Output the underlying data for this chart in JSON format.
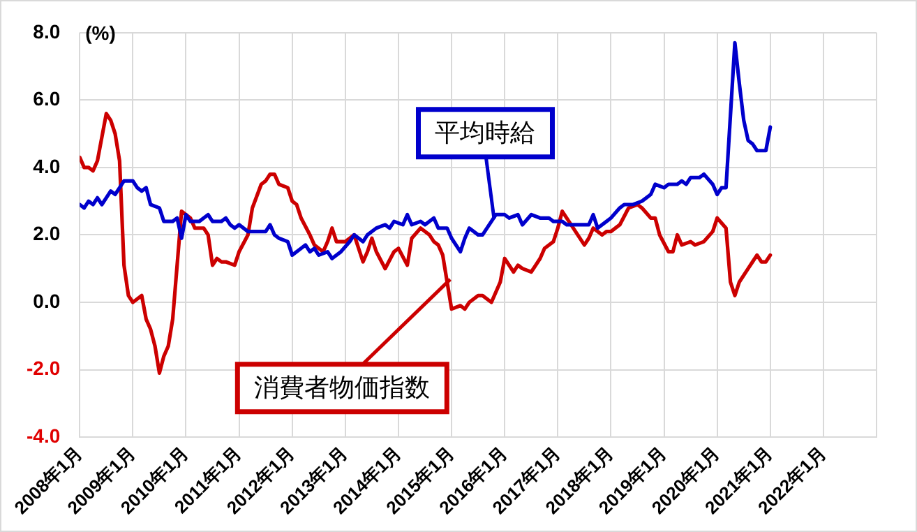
{
  "chart_data": {
    "type": "line",
    "ylabel": "(%)",
    "grid": true,
    "legend": false,
    "marker": "none",
    "line_style": "solid",
    "xlim": [
      "2008-01",
      "2023-01"
    ],
    "xticks": [
      {
        "value": "2008-01",
        "label": "2008年1月"
      },
      {
        "value": "2009-01",
        "label": "2009年1月"
      },
      {
        "value": "2010-01",
        "label": "2010年1月"
      },
      {
        "value": "2011-01",
        "label": "2011年1月"
      },
      {
        "value": "2012-01",
        "label": "2012年1月"
      },
      {
        "value": "2013-01",
        "label": "2013年1月"
      },
      {
        "value": "2014-01",
        "label": "2014年1月"
      },
      {
        "value": "2015-01",
        "label": "2015年1月"
      },
      {
        "value": "2016-01",
        "label": "2016年1月"
      },
      {
        "value": "2017-01",
        "label": "2017年1月"
      },
      {
        "value": "2018-01",
        "label": "2018年1月"
      },
      {
        "value": "2019-01",
        "label": "2019年1月"
      },
      {
        "value": "2020-01",
        "label": "2020年1月"
      },
      {
        "value": "2021-01",
        "label": "2021年1月"
      },
      {
        "value": "2022-01",
        "label": "2022年1月"
      },
      {
        "value": "2023-01",
        "label": null
      }
    ],
    "ylim": [
      -4,
      8
    ],
    "yticks": [
      {
        "value": -4,
        "label": "-4.0"
      },
      {
        "value": -2,
        "label": "-2.0"
      },
      {
        "value": 0,
        "label": "0.0"
      },
      {
        "value": 2,
        "label": "2.0"
      },
      {
        "value": 4,
        "label": "4.0"
      },
      {
        "value": 6,
        "label": "6.0"
      },
      {
        "value": 8,
        "label": "8.0"
      }
    ],
    "series": [
      {
        "name": "平均時給",
        "color": "#0000cc",
        "x": [
          "2008-01",
          "2008-02",
          "2008-03",
          "2008-04",
          "2008-05",
          "2008-06",
          "2008-08",
          "2008-09",
          "2008-10",
          "2008-11",
          "2009-01",
          "2009-02",
          "2009-03",
          "2009-04",
          "2009-05",
          "2009-07",
          "2009-08",
          "2009-10",
          "2009-11",
          "2009-12",
          "2010-01",
          "2010-02",
          "2010-04",
          "2010-06",
          "2010-07",
          "2010-09",
          "2010-10",
          "2010-11",
          "2010-12",
          "2011-01",
          "2011-03",
          "2011-05",
          "2011-07",
          "2011-08",
          "2011-09",
          "2011-10",
          "2011-12",
          "2012-01",
          "2012-03",
          "2012-04",
          "2012-05",
          "2012-06",
          "2012-07",
          "2012-09",
          "2012-10",
          "2012-12",
          "2013-02",
          "2013-03",
          "2013-05",
          "2013-06",
          "2013-08",
          "2013-10",
          "2013-11",
          "2013-12",
          "2014-02",
          "2014-03",
          "2014-04",
          "2014-06",
          "2014-07",
          "2014-09",
          "2014-10",
          "2014-12",
          "2015-01",
          "2015-03",
          "2015-04",
          "2015-05",
          "2015-07",
          "2015-08",
          "2015-10",
          "2015-11",
          "2016-01",
          "2016-02",
          "2016-04",
          "2016-05",
          "2016-07",
          "2016-09",
          "2016-11",
          "2016-12",
          "2017-02",
          "2017-03",
          "2017-05",
          "2017-07",
          "2017-08",
          "2017-09",
          "2017-10",
          "2017-12",
          "2018-01",
          "2018-03",
          "2018-04",
          "2018-06",
          "2018-08",
          "2018-09",
          "2018-10",
          "2018-11",
          "2019-01",
          "2019-02",
          "2019-04",
          "2019-05",
          "2019-06",
          "2019-07",
          "2019-09",
          "2019-10",
          "2019-12",
          "2020-01",
          "2020-02",
          "2020-03",
          "2020-05",
          "2020-06",
          "2020-07",
          "2020-08",
          "2020-09",
          "2020-10",
          "2020-12",
          "2021-01"
        ],
        "values": [
          2.9,
          2.8,
          3.0,
          2.9,
          3.1,
          2.9,
          3.3,
          3.2,
          3.4,
          3.6,
          3.6,
          3.4,
          3.3,
          3.4,
          2.9,
          2.8,
          2.4,
          2.4,
          2.5,
          1.9,
          2.6,
          2.4,
          2.4,
          2.6,
          2.4,
          2.4,
          2.5,
          2.3,
          2.2,
          2.3,
          2.1,
          2.1,
          2.1,
          2.3,
          2.0,
          1.9,
          1.8,
          1.4,
          1.6,
          1.7,
          1.5,
          1.6,
          1.4,
          1.5,
          1.3,
          1.5,
          1.8,
          2.0,
          1.8,
          2.0,
          2.2,
          2.3,
          2.2,
          2.4,
          2.3,
          2.6,
          2.3,
          2.4,
          2.3,
          2.5,
          2.2,
          2.2,
          1.9,
          1.5,
          1.9,
          2.2,
          2.0,
          2.0,
          2.4,
          2.6,
          2.6,
          2.5,
          2.6,
          2.3,
          2.6,
          2.5,
          2.5,
          2.4,
          2.4,
          2.3,
          2.3,
          2.3,
          2.3,
          2.6,
          2.2,
          2.4,
          2.5,
          2.8,
          2.9,
          2.9,
          3.0,
          3.1,
          3.2,
          3.5,
          3.4,
          3.5,
          3.5,
          3.6,
          3.5,
          3.7,
          3.7,
          3.8,
          3.5,
          3.2,
          3.4,
          3.4,
          7.7,
          6.5,
          5.4,
          4.8,
          4.7,
          4.5,
          4.5,
          5.2
        ]
      },
      {
        "name": "消費者物価指数",
        "color": "#cc0000",
        "x": [
          "2008-01",
          "2008-02",
          "2008-03",
          "2008-04",
          "2008-05",
          "2008-07",
          "2008-08",
          "2008-09",
          "2008-10",
          "2008-11",
          "2008-12",
          "2009-01",
          "2009-03",
          "2009-04",
          "2009-05",
          "2009-06",
          "2009-07",
          "2009-08",
          "2009-09",
          "2009-10",
          "2009-11",
          "2009-12",
          "2010-02",
          "2010-03",
          "2010-05",
          "2010-06",
          "2010-07",
          "2010-08",
          "2010-09",
          "2010-10",
          "2010-12",
          "2011-01",
          "2011-03",
          "2011-04",
          "2011-06",
          "2011-07",
          "2011-08",
          "2011-09",
          "2011-10",
          "2011-12",
          "2012-01",
          "2012-02",
          "2012-03",
          "2012-05",
          "2012-06",
          "2012-07",
          "2012-08",
          "2012-09",
          "2012-10",
          "2012-11",
          "2013-01",
          "2013-03",
          "2013-04",
          "2013-05",
          "2013-06",
          "2013-07",
          "2013-08",
          "2013-10",
          "2013-12",
          "2014-01",
          "2014-03",
          "2014-04",
          "2014-06",
          "2014-08",
          "2014-09",
          "2014-10",
          "2014-11",
          "2014-12",
          "2015-01",
          "2015-03",
          "2015-04",
          "2015-05",
          "2015-07",
          "2015-08",
          "2015-10",
          "2015-12",
          "2016-01",
          "2016-03",
          "2016-04",
          "2016-05",
          "2016-07",
          "2016-09",
          "2016-10",
          "2016-12",
          "2017-01",
          "2017-02",
          "2017-04",
          "2017-05",
          "2017-07",
          "2017-08",
          "2017-09",
          "2017-11",
          "2017-12",
          "2018-01",
          "2018-03",
          "2018-05",
          "2018-07",
          "2018-08",
          "2018-10",
          "2018-11",
          "2018-12",
          "2019-02",
          "2019-03",
          "2019-04",
          "2019-05",
          "2019-07",
          "2019-08",
          "2019-10",
          "2019-12",
          "2020-01",
          "2020-03",
          "2020-04",
          "2020-05",
          "2020-06",
          "2020-08",
          "2020-09",
          "2020-10",
          "2020-11",
          "2020-12",
          "2021-01"
        ],
        "values": [
          4.3,
          4.0,
          4.0,
          3.9,
          4.2,
          5.6,
          5.4,
          5.0,
          4.2,
          1.1,
          0.2,
          0.0,
          0.2,
          -0.5,
          -0.8,
          -1.3,
          -2.1,
          -1.6,
          -1.3,
          -0.5,
          1.1,
          2.7,
          2.5,
          2.2,
          2.2,
          2.0,
          1.1,
          1.3,
          1.2,
          1.2,
          1.1,
          1.5,
          2.0,
          2.8,
          3.5,
          3.6,
          3.8,
          3.8,
          3.5,
          3.4,
          3.0,
          2.9,
          2.5,
          2.0,
          1.7,
          1.6,
          1.5,
          1.8,
          2.2,
          1.8,
          1.8,
          2.0,
          1.6,
          1.2,
          1.5,
          1.9,
          1.5,
          1.0,
          1.5,
          1.6,
          1.1,
          1.9,
          2.2,
          2.0,
          1.8,
          1.7,
          1.4,
          0.6,
          -0.2,
          -0.1,
          -0.2,
          0.0,
          0.2,
          0.2,
          0.0,
          0.6,
          1.3,
          0.9,
          1.1,
          1.0,
          0.9,
          1.3,
          1.6,
          1.8,
          2.2,
          2.7,
          2.3,
          2.1,
          1.7,
          1.9,
          2.2,
          2.0,
          2.1,
          2.1,
          2.3,
          2.8,
          2.9,
          2.8,
          2.5,
          2.5,
          2.0,
          1.5,
          1.5,
          2.0,
          1.7,
          1.8,
          1.7,
          1.8,
          2.1,
          2.5,
          2.2,
          0.6,
          0.2,
          0.6,
          1.0,
          1.2,
          1.4,
          1.2,
          1.2,
          1.4
        ]
      }
    ]
  }
}
